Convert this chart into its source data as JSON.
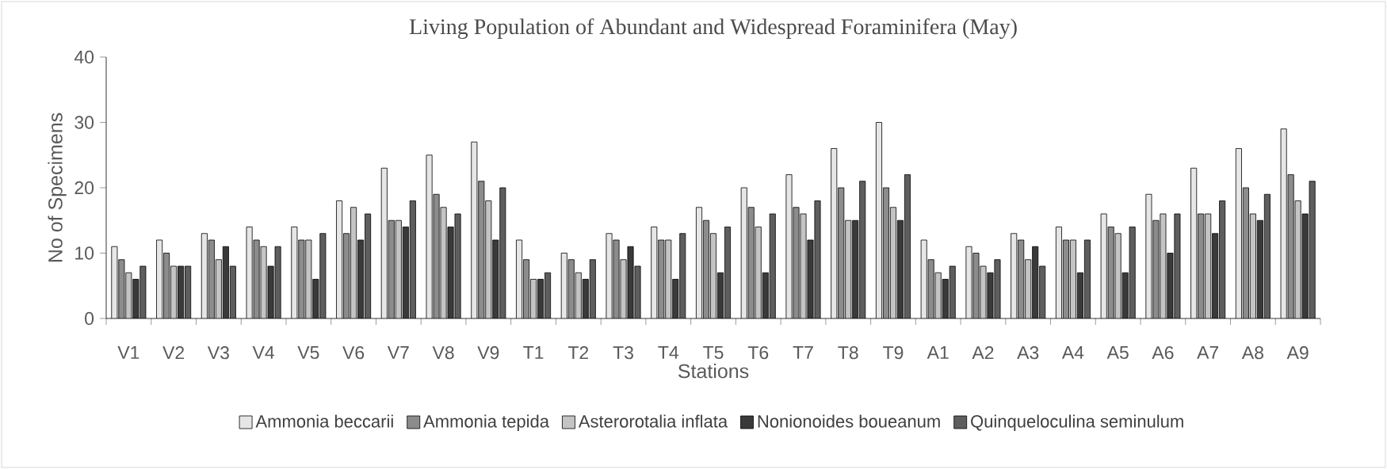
{
  "chart_data": {
    "type": "bar",
    "title": "Living Population of Abundant and Widespread Foraminifera (May)",
    "xlabel": "Stations",
    "ylabel": "No of Specimens",
    "categories": [
      "V1",
      "V2",
      "V3",
      "V4",
      "V5",
      "V6",
      "V7",
      "V8",
      "V9",
      "T1",
      "T2",
      "T3",
      "T4",
      "T5",
      "T6",
      "T7",
      "T8",
      "T9",
      "A1",
      "A2",
      "A3",
      "A4",
      "A5",
      "A6",
      "A7",
      "A8",
      "A9"
    ],
    "series": [
      {
        "name": "Ammonia beccarii",
        "color": "#e6e6e6",
        "values": [
          11,
          12,
          13,
          14,
          14,
          18,
          23,
          25,
          27,
          12,
          10,
          13,
          14,
          17,
          20,
          22,
          26,
          30,
          12,
          11,
          13,
          14,
          16,
          19,
          23,
          26,
          29
        ]
      },
      {
        "name": "Ammonia tepida",
        "color": "#8c8c8c",
        "values": [
          9,
          10,
          12,
          12,
          12,
          13,
          15,
          19,
          21,
          9,
          9,
          12,
          12,
          15,
          17,
          17,
          20,
          20,
          9,
          10,
          12,
          12,
          14,
          15,
          16,
          20,
          22
        ]
      },
      {
        "name": "Asterorotalia inflata",
        "color": "#c4c4c4",
        "values": [
          7,
          8,
          9,
          11,
          12,
          17,
          15,
          17,
          18,
          6,
          7,
          9,
          12,
          13,
          14,
          16,
          15,
          17,
          7,
          8,
          9,
          12,
          13,
          16,
          16,
          16,
          18
        ]
      },
      {
        "name": "Nonionoides boueanum",
        "color": "#3a3a3a",
        "values": [
          6,
          8,
          11,
          8,
          6,
          12,
          14,
          14,
          12,
          6,
          6,
          11,
          6,
          7,
          7,
          12,
          15,
          15,
          6,
          7,
          11,
          7,
          7,
          10,
          13,
          15,
          16
        ]
      },
      {
        "name": "Quinqueloculina seminulum",
        "color": "#5e5e5e",
        "values": [
          8,
          8,
          8,
          11,
          13,
          16,
          18,
          16,
          20,
          7,
          9,
          8,
          13,
          14,
          16,
          18,
          21,
          22,
          8,
          9,
          8,
          12,
          14,
          16,
          18,
          19,
          21
        ]
      }
    ],
    "ylim": [
      0,
      40
    ],
    "yticks": [
      0,
      10,
      20,
      30,
      40
    ],
    "grid": false,
    "legend": "bottom"
  }
}
